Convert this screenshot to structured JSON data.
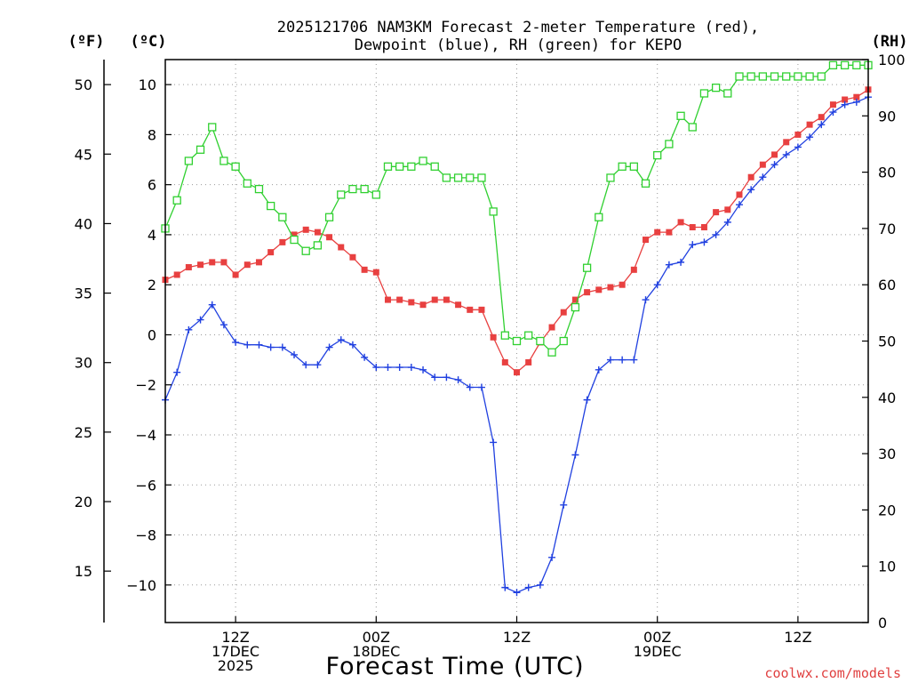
{
  "chart_data": {
    "type": "line",
    "title_lines": [
      "2025121706 NAM3KM Forecast 2-meter Temperature (red),",
      "Dewpoint (blue), RH (green) for KEPO"
    ],
    "xlabel": "Forecast Time (UTC)",
    "credit": "coolwx.com/models",
    "units": {
      "fahrenheit": "(ºF)",
      "celsius": "(ºC)",
      "rh": "(RH)"
    },
    "x_range_hours": [
      0,
      60
    ],
    "x_ticks": [
      {
        "hour": 6,
        "lines": [
          "12Z",
          "17DEC",
          "2025"
        ]
      },
      {
        "hour": 18,
        "lines": [
          "00Z",
          "18DEC"
        ]
      },
      {
        "hour": 30,
        "lines": [
          "12Z"
        ]
      },
      {
        "hour": 42,
        "lines": [
          "00Z",
          "19DEC"
        ]
      },
      {
        "hour": 54,
        "lines": [
          "12Z"
        ]
      }
    ],
    "celsius_axis": {
      "range": [
        -11.5,
        11.0
      ],
      "ticks": [
        -10,
        -8,
        -6,
        -4,
        -2,
        0,
        2,
        4,
        6,
        8,
        10
      ]
    },
    "fahrenheit_axis": {
      "ticks": [
        15,
        20,
        25,
        30,
        35,
        40,
        45,
        50
      ]
    },
    "rh_axis": {
      "range": [
        0,
        100
      ],
      "ticks": [
        0,
        10,
        20,
        30,
        40,
        50,
        60,
        70,
        80,
        90,
        100
      ]
    },
    "grid": true,
    "series": [
      {
        "key": "temperature",
        "color": "#e84040",
        "marker": "filled-square",
        "axis": "celsius",
        "values": [
          2.2,
          2.4,
          2.7,
          2.8,
          2.9,
          2.9,
          2.4,
          2.8,
          2.9,
          3.3,
          3.7,
          4.0,
          4.2,
          4.1,
          3.9,
          3.5,
          3.1,
          2.6,
          2.5,
          1.4,
          1.4,
          1.3,
          1.2,
          1.4,
          1.4,
          1.2,
          1.0,
          1.0,
          -0.1,
          -1.1,
          -1.5,
          -1.1,
          -0.3,
          0.3,
          0.9,
          1.4,
          1.7,
          1.8,
          1.9,
          2.0,
          2.6,
          3.8,
          4.1,
          4.1,
          4.5,
          4.3,
          4.3,
          4.9,
          5.0,
          5.6,
          6.3,
          6.8,
          7.2,
          7.7,
          8.0,
          8.4,
          8.7,
          9.2,
          9.4,
          9.5,
          9.8
        ]
      },
      {
        "key": "dewpoint",
        "color": "#2040e0",
        "marker": "plus",
        "axis": "celsius",
        "values": [
          -2.6,
          -1.5,
          0.2,
          0.6,
          1.2,
          0.4,
          -0.3,
          -0.4,
          -0.4,
          -0.5,
          -0.5,
          -0.8,
          -1.2,
          -1.2,
          -0.5,
          -0.2,
          -0.4,
          -0.9,
          -1.3,
          -1.3,
          -1.3,
          -1.3,
          -1.4,
          -1.7,
          -1.7,
          -1.8,
          -2.1,
          -2.1,
          -4.3,
          -10.1,
          -10.3,
          -10.1,
          -10.0,
          -8.9,
          -6.8,
          -4.8,
          -2.6,
          -1.4,
          -1.0,
          -1.0,
          -1.0,
          1.4,
          2.0,
          2.8,
          2.9,
          3.6,
          3.7,
          4.0,
          4.5,
          5.2,
          5.8,
          6.3,
          6.8,
          7.2,
          7.5,
          7.9,
          8.4,
          8.9,
          9.2,
          9.3,
          9.5
        ]
      },
      {
        "key": "rh",
        "color": "#30d030",
        "marker": "open-square",
        "axis": "rh",
        "values": [
          70,
          75,
          82,
          84,
          88,
          82,
          81,
          78,
          77,
          74,
          72,
          68,
          66,
          67,
          72,
          76,
          77,
          77,
          76,
          81,
          81,
          81,
          82,
          81,
          79,
          79,
          79,
          79,
          73,
          51,
          50,
          51,
          50,
          48,
          50,
          56,
          63,
          72,
          79,
          81,
          81,
          78,
          83,
          85,
          90,
          88,
          94,
          95,
          94,
          97,
          97,
          97,
          97,
          97,
          97,
          97,
          97,
          99,
          99,
          99,
          99
        ]
      }
    ]
  }
}
